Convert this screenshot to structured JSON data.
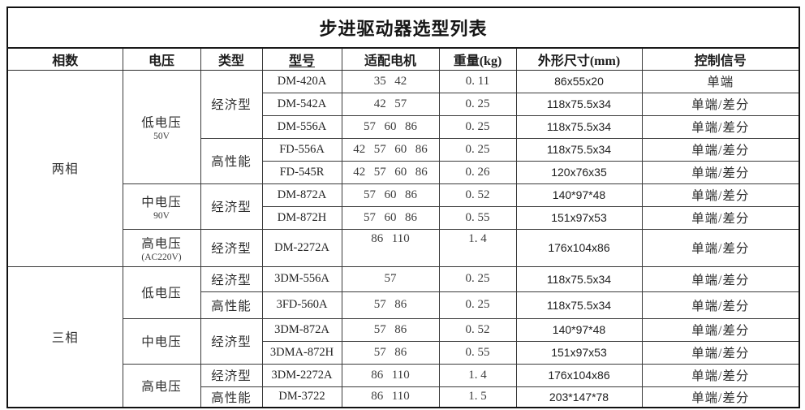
{
  "title": "步进驱动器选型列表",
  "header": {
    "phase": "相数",
    "voltage": "电压",
    "type": "类型",
    "model": "型号",
    "motor": "适配电机",
    "weight": "重量(kg)",
    "dims": "外形尺寸(mm)",
    "signal": "控制信号"
  },
  "rows": [
    {
      "phase": "两相",
      "voltage": "低电压",
      "voltage_sub": "50V",
      "type": "经济型",
      "model": "DM-420A",
      "motor": "35 42",
      "weight": "0. 11",
      "dims": "86x55x20",
      "signal": "单端"
    },
    {
      "model": "DM-542A",
      "motor": "42 57",
      "weight": "0. 25",
      "dims": "118x75.5x34",
      "signal": "单端/差分"
    },
    {
      "model": "DM-556A",
      "motor": "57 60 86",
      "weight": "0. 25",
      "dims": "118x75.5x34",
      "signal": "单端/差分"
    },
    {
      "type": "高性能",
      "model": "FD-556A",
      "motor": "42 57 60 86",
      "weight": "0. 25",
      "dims": "118x75.5x34",
      "signal": "单端/差分"
    },
    {
      "model": "FD-545R",
      "motor": "42 57 60 86",
      "weight": "0. 26",
      "dims": "120x76x35",
      "signal": "单端/差分"
    },
    {
      "voltage": "中电压",
      "voltage_sub": "90V",
      "type": "经济型",
      "model": "DM-872A",
      "motor": "57 60 86",
      "weight": "0. 52",
      "dims": "140*97*48",
      "signal": "单端/差分"
    },
    {
      "model": "DM-872H",
      "motor": "57 60 86",
      "weight": "0. 55",
      "dims": "151x97x53",
      "signal": "单端/差分"
    },
    {
      "voltage": "高电压",
      "voltage_sub": "(AC220V)",
      "type": "经济型",
      "model": "DM-2272A",
      "motor": "86 110",
      "weight": "1. 4",
      "dims": "176x104x86",
      "signal": "单端/差分"
    },
    {
      "phase": "三相",
      "voltage": "低电压",
      "type": "经济型",
      "model": "3DM-556A",
      "motor": "57",
      "weight": "0. 25",
      "dims": "118x75.5x34",
      "signal": "单端/差分"
    },
    {
      "type": "高性能",
      "model": "3FD-560A",
      "motor": "57 86",
      "weight": "0. 25",
      "dims": "118x75.5x34",
      "signal": "单端/差分"
    },
    {
      "voltage": "中电压",
      "type": "经济型",
      "model": "3DM-872A",
      "motor": "57 86",
      "weight": "0. 52",
      "dims": "140*97*48",
      "signal": "单端/差分"
    },
    {
      "model": "3DMA-872H",
      "motor": "57 86",
      "weight": "0. 55",
      "dims": "151x97x53",
      "signal": "单端/差分"
    },
    {
      "voltage": "高电压",
      "type": "经济型",
      "model": "3DM-2272A",
      "motor": "86 110",
      "weight": "1. 4",
      "dims": "176x104x86",
      "signal": "单端/差分"
    },
    {
      "type": "高性能",
      "model": "DM-3722",
      "motor": "86 110",
      "weight": "1. 5",
      "dims": "203*147*78",
      "signal": "单端/差分"
    }
  ]
}
